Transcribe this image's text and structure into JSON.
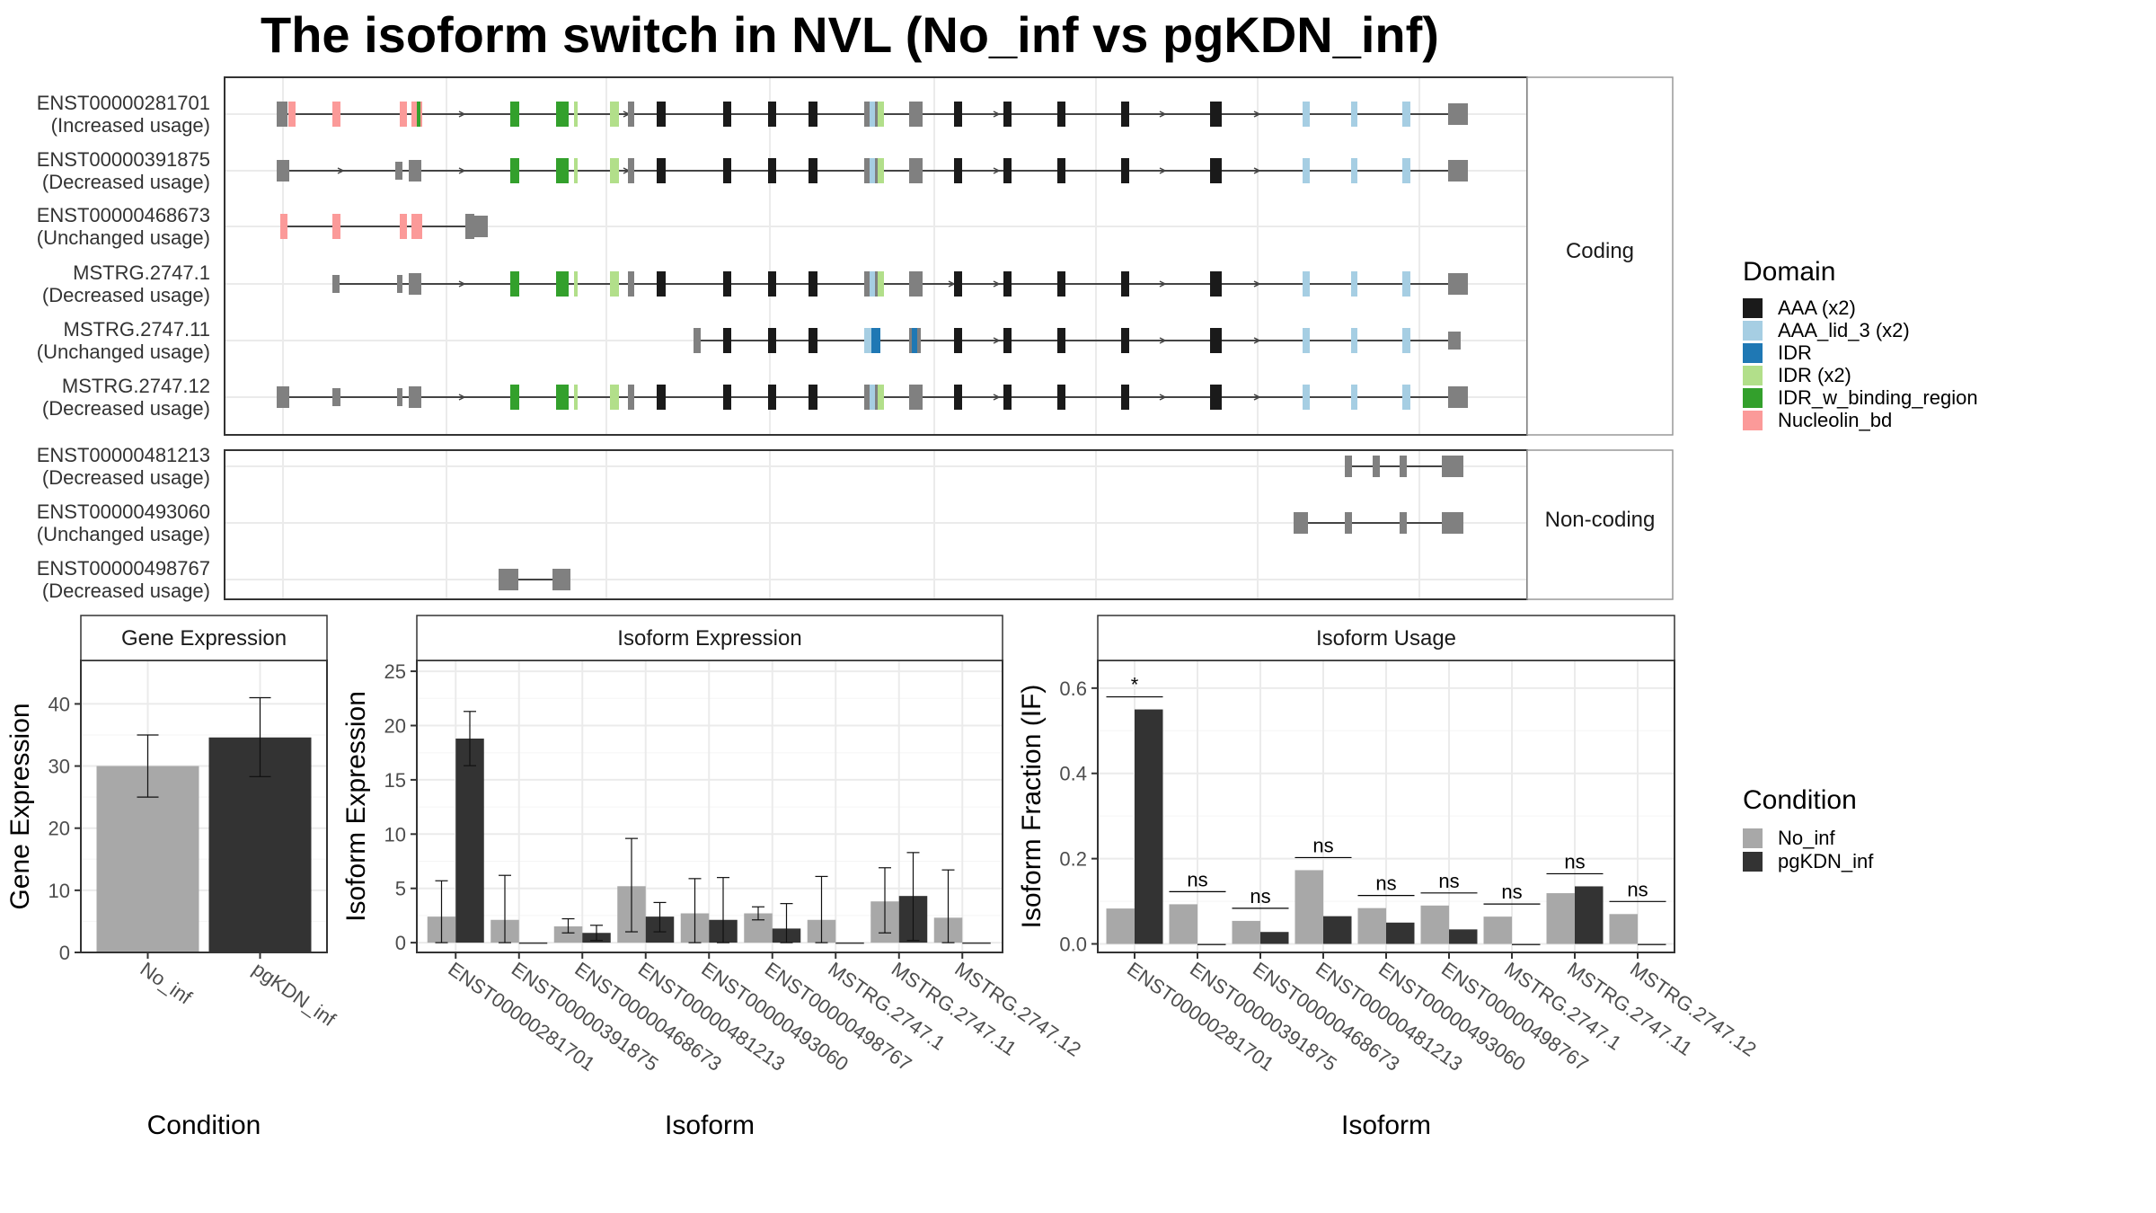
{
  "title": "The isoform switch in NVL (No_inf vs pgKDN_inf)",
  "domain_colors": {
    "AAA (x2)": "#1a1a1a",
    "AAA_lid_3 (x2)": "#a6cee3",
    "IDR": "#1f78b4",
    "IDR (x2)": "#b2df8a",
    "IDR_w_binding_region": "#33a02c",
    "Nucleolin_bd": "#fb9a99"
  },
  "condition_colors": {
    "No_inf": "#a8a8a8",
    "pgKDN_inf": "#333333"
  },
  "transcript_structure": {
    "panels": [
      {
        "label": "Coding",
        "transcripts": [
          {
            "id": "ENST00000281701",
            "usage": "(Increased usage)"
          },
          {
            "id": "ENST00000391875",
            "usage": "(Decreased usage)"
          },
          {
            "id": "ENST00000468673",
            "usage": "(Unchanged usage)"
          },
          {
            "id": "MSTRG.2747.1",
            "usage": "(Decreased usage)"
          },
          {
            "id": "MSTRG.2747.11",
            "usage": "(Unchanged usage)"
          },
          {
            "id": "MSTRG.2747.12",
            "usage": "(Decreased usage)"
          }
        ]
      },
      {
        "label": "Non-coding",
        "transcripts": [
          {
            "id": "ENST00000481213",
            "usage": "(Decreased usage)"
          },
          {
            "id": "ENST00000493060",
            "usage": "(Unchanged usage)"
          },
          {
            "id": "ENST00000498767",
            "usage": "(Decreased usage)"
          }
        ]
      }
    ]
  },
  "chart_data": [
    {
      "type": "bar",
      "title": "Gene Expression",
      "categories": [
        "No_inf",
        "pgKDN_inf"
      ],
      "values": [
        30,
        34.6
      ],
      "errors": [
        [
          25,
          35
        ],
        [
          28.3,
          41
        ]
      ],
      "xlabel": "Condition",
      "ylabel": "Gene Expression",
      "ylim": [
        0,
        47
      ],
      "yticks": [
        0,
        10,
        20,
        30,
        40
      ]
    },
    {
      "type": "bar",
      "title": "Isoform Expression",
      "categories": [
        "ENST00000281701",
        "ENST00000391875",
        "ENST00000468673",
        "ENST00000481213",
        "ENST00000493060",
        "ENST00000498767",
        "MSTRG.2747.1",
        "MSTRG.2747.11",
        "MSTRG.2747.12"
      ],
      "series": [
        {
          "name": "No_inf",
          "values": [
            2.4,
            2.1,
            1.5,
            5.2,
            2.7,
            2.7,
            2.1,
            3.8,
            2.3
          ],
          "errors": [
            [
              0,
              5.7
            ],
            [
              0,
              6.2
            ],
            [
              0.9,
              2.2
            ],
            [
              1,
              9.6
            ],
            [
              0,
              5.9
            ],
            [
              2.1,
              3.3
            ],
            [
              0,
              6.1
            ],
            [
              0.9,
              6.9
            ],
            [
              0,
              6.7
            ]
          ]
        },
        {
          "name": "pgKDN_inf",
          "values": [
            18.8,
            0.02,
            0.9,
            2.4,
            2.1,
            1.3,
            0.02,
            4.3,
            0.02
          ],
          "errors": [
            [
              16.3,
              21.3
            ],
            null,
            [
              0.2,
              1.6
            ],
            [
              1,
              3.7
            ],
            [
              0,
              6
            ],
            [
              0,
              3.6
            ],
            null,
            [
              0.2,
              8.3
            ],
            null
          ]
        }
      ],
      "xlabel": "Isoform",
      "ylabel": "Isoform Expression",
      "ylim": [
        -0.9,
        26
      ],
      "yticks": [
        0,
        5,
        10,
        15,
        20,
        25
      ]
    },
    {
      "type": "bar",
      "title": "Isoform Usage",
      "categories": [
        "ENST00000281701",
        "ENST00000391875",
        "ENST00000468673",
        "ENST00000481213",
        "ENST00000493060",
        "ENST00000498767",
        "MSTRG.2747.1",
        "MSTRG.2747.11",
        "MSTRG.2747.12"
      ],
      "series": [
        {
          "name": "No_inf",
          "values": [
            0.083,
            0.093,
            0.054,
            0.173,
            0.084,
            0.09,
            0.064,
            0.119,
            0.07
          ]
        },
        {
          "name": "pgKDN_inf",
          "values": [
            0.55,
            0,
            0.028,
            0.065,
            0.05,
            0.034,
            0,
            0.135,
            0
          ]
        }
      ],
      "significance": [
        "*",
        "ns",
        "ns",
        "ns",
        "ns",
        "ns",
        "ns",
        "ns",
        "ns"
      ],
      "xlabel": "Isoform",
      "ylabel": "Isoform Fraction (IF)",
      "ylim": [
        -0.02,
        0.665
      ],
      "yticks": [
        0.0,
        0.2,
        0.4,
        0.6
      ],
      "ytick_labels": [
        "0.0",
        "0.2",
        "0.4",
        "0.6"
      ]
    }
  ],
  "legends": {
    "domain": {
      "title": "Domain",
      "items": [
        "AAA (x2)",
        "AAA_lid_3 (x2)",
        "IDR",
        "IDR (x2)",
        "IDR_w_binding_region",
        "Nucleolin_bd"
      ]
    },
    "condition": {
      "title": "Condition",
      "items": [
        "No_inf",
        "pgKDN_inf"
      ]
    }
  }
}
